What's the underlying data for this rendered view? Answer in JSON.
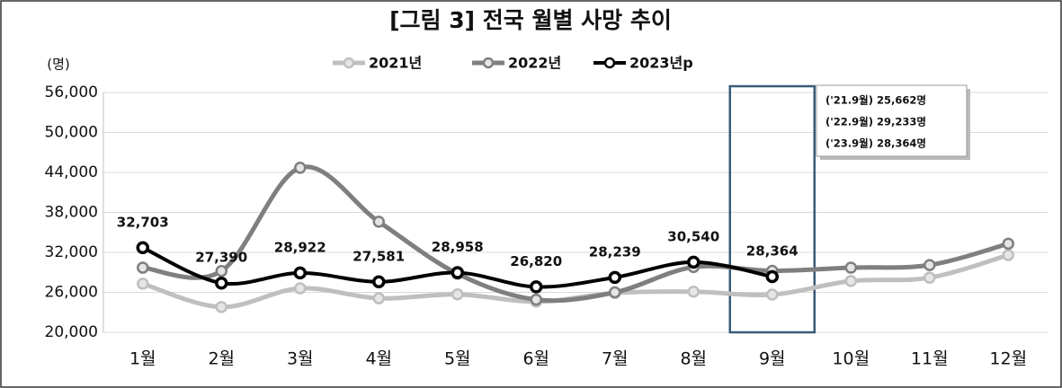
{
  "chart_data": {
    "type": "line",
    "title": "[그림 3] 전국 월별 사망 추이",
    "y_unit": "(명)",
    "categories": [
      "1월",
      "2월",
      "3월",
      "4월",
      "5월",
      "6월",
      "7월",
      "8월",
      "9월",
      "10월",
      "11월",
      "12월"
    ],
    "series": [
      {
        "name": "2021년",
        "color": "#bfbfbf",
        "values": [
          27300,
          23800,
          26600,
          25100,
          25700,
          24600,
          25900,
          26100,
          25662,
          27700,
          28200,
          31600
        ]
      },
      {
        "name": "2022년",
        "color": "#7f7f7f",
        "values": [
          29700,
          29200,
          44700,
          36600,
          28800,
          24900,
          26000,
          29800,
          29233,
          29700,
          30100,
          33300
        ]
      },
      {
        "name": "2023년p",
        "color": "#000000",
        "values": [
          32703,
          27390,
          28922,
          27581,
          28958,
          26820,
          28239,
          30540,
          28364,
          null,
          null,
          null
        ],
        "value_labels": [
          "32,703",
          "27,390",
          "28,922",
          "27,581",
          "28,958",
          "26,820",
          "28,239",
          "30,540",
          "28,364",
          null,
          null,
          null
        ]
      }
    ],
    "ylim": [
      20000,
      56000
    ],
    "yticks": [
      {
        "value": 20000,
        "label": "20,000"
      },
      {
        "value": 26000,
        "label": "26,000"
      },
      {
        "value": 32000,
        "label": "32,000"
      },
      {
        "value": 38000,
        "label": "38,000"
      },
      {
        "value": 44000,
        "label": "44,000"
      },
      {
        "value": 50000,
        "label": "50,000"
      },
      {
        "value": 56000,
        "label": "56,000"
      }
    ],
    "grid": true,
    "legend": "top",
    "annotations": [
      "('21.9월) 25,662명",
      "('22.9월) 29,233명",
      "('23.9월) 28,364명"
    ]
  }
}
